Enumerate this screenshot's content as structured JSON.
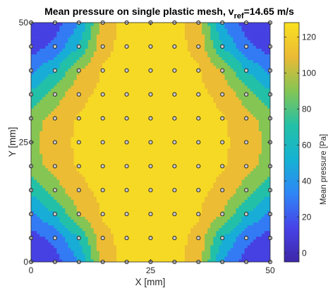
{
  "chart_data": {
    "type": "heatmap",
    "title_main": "Mean pressure on single plastic mesh, v",
    "title_sub": "ref",
    "title_tail": "=14.65 m/s",
    "xlabel": "X [mm]",
    "ylabel": "Y [mm]",
    "colorbar_label": "Mean pressure [Pa]",
    "xlim": [
      0,
      50
    ],
    "ylim": [
      0,
      50
    ],
    "clim": [
      -5,
      128
    ],
    "x_ticks": [
      0,
      25,
      50
    ],
    "y_ticks": [
      0,
      25,
      50
    ],
    "colorbar_ticks": [
      0,
      20,
      40,
      60,
      80,
      100,
      120
    ],
    "colorbar_stops": [
      "#3e26a8",
      "#4743e8",
      "#2f86f6",
      "#15b2d3",
      "#24c1a6",
      "#84c554",
      "#ebba35",
      "#f9e11f"
    ],
    "contour_levels": [
      5,
      20,
      40,
      60,
      80,
      100,
      120
    ],
    "marker_color": "#c8c8c8",
    "measurement_grid": {
      "x": [
        0,
        5,
        10,
        15,
        20,
        25,
        30,
        35,
        40,
        45,
        50
      ],
      "y": [
        0,
        5,
        10,
        15,
        20,
        25,
        30,
        35,
        40,
        45,
        50
      ]
    },
    "pressure_pa": [
      [
        5,
        10,
        40,
        110,
        126,
        126,
        126,
        110,
        40,
        10,
        5
      ],
      [
        10,
        25,
        60,
        115,
        126,
        126,
        126,
        115,
        60,
        25,
        10
      ],
      [
        35,
        60,
        100,
        122,
        126,
        126,
        126,
        122,
        100,
        60,
        35
      ],
      [
        65,
        90,
        115,
        125,
        126,
        126,
        126,
        125,
        115,
        90,
        65
      ],
      [
        90,
        108,
        122,
        126,
        126,
        126,
        126,
        126,
        122,
        108,
        90
      ],
      [
        95,
        112,
        124,
        126,
        126,
        126,
        126,
        126,
        124,
        112,
        95
      ],
      [
        90,
        108,
        122,
        126,
        126,
        126,
        126,
        126,
        122,
        108,
        90
      ],
      [
        65,
        90,
        115,
        125,
        126,
        126,
        126,
        125,
        115,
        90,
        65
      ],
      [
        35,
        60,
        100,
        122,
        126,
        126,
        126,
        122,
        100,
        60,
        35
      ],
      [
        10,
        25,
        60,
        115,
        126,
        126,
        126,
        115,
        60,
        25,
        10
      ],
      [
        5,
        10,
        40,
        110,
        126,
        126,
        126,
        110,
        40,
        10,
        5
      ]
    ]
  }
}
